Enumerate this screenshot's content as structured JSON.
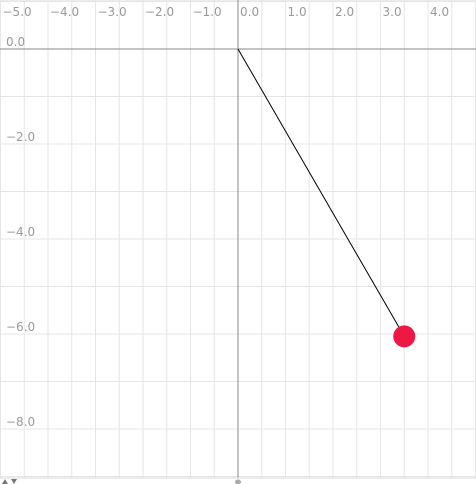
{
  "x_axis": {
    "ticks": [
      "−5.0",
      "−4.0",
      "−3.0",
      "−2.0",
      "−1.0",
      "0.0",
      "1.0",
      "2.0",
      "3.0",
      "4.0"
    ],
    "values": [
      -5,
      -4,
      -3,
      -2,
      -1,
      0,
      1,
      2,
      3,
      4
    ]
  },
  "y_axis": {
    "ticks": [
      "0.0",
      "−2.0",
      "−4.0",
      "−6.0",
      "−8.0"
    ],
    "values": [
      0,
      -2,
      -4,
      -6,
      -8
    ]
  },
  "pendulum": {
    "pivot": [
      0,
      0
    ],
    "bob": [
      3.5,
      -6.05
    ],
    "bob_color": "#ef1744",
    "rod_color": "#000000"
  },
  "colors": {
    "grid": "#e6e6e6",
    "axis": "#8a8a8a",
    "tick_text": "#9a9a9a"
  },
  "icons": {
    "bottom_left": "triangle-controls-icon",
    "bottom_center": "slider-handle-icon"
  }
}
